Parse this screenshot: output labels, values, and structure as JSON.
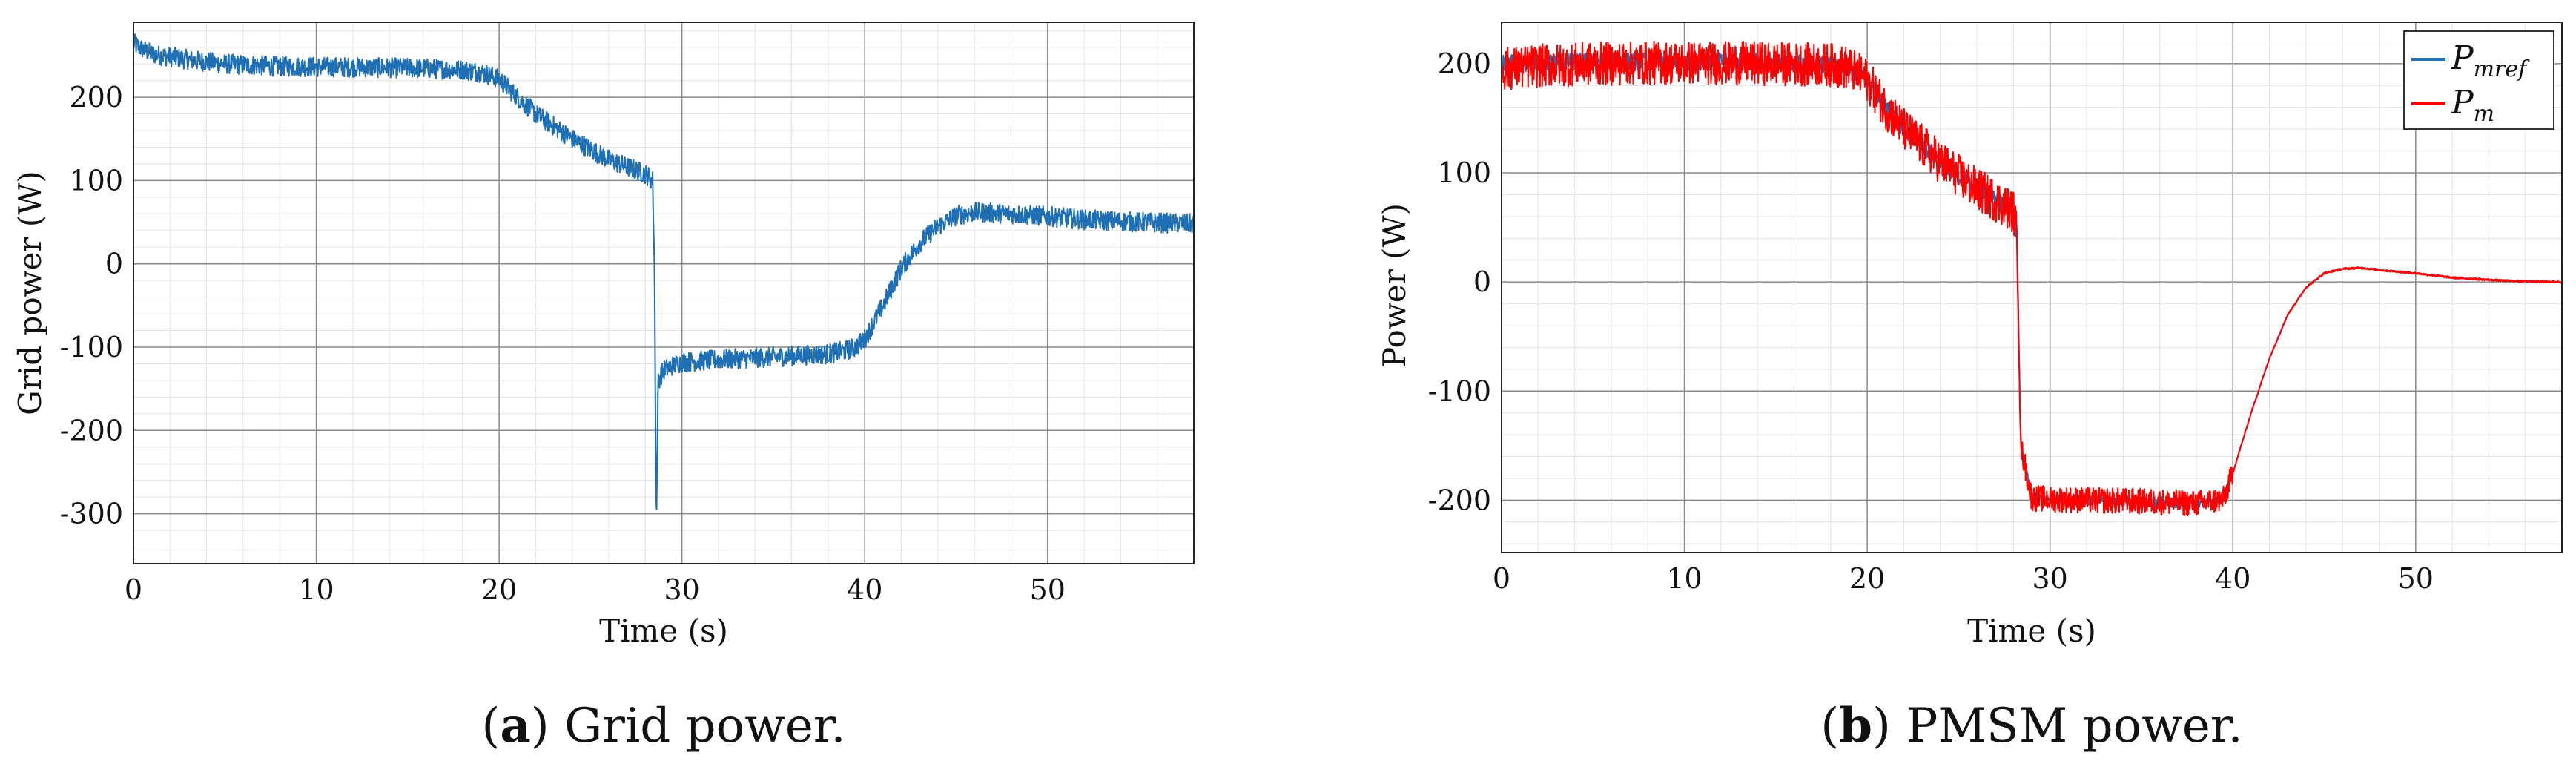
{
  "chart_data": [
    {
      "type": "line",
      "panel": "a",
      "caption_label": "a",
      "caption_text": "Grid power.",
      "xlabel": "Time (s)",
      "ylabel": "Grid power  (W)",
      "xlim": [
        0,
        58
      ],
      "ylim": [
        -360,
        290
      ],
      "x_ticks": [
        0,
        10,
        20,
        30,
        40,
        50
      ],
      "y_ticks": [
        200,
        100,
        0,
        -100,
        -200,
        -300
      ],
      "y_tick_labels": [
        "200",
        "100",
        "0",
        "-100",
        "-200",
        "-300"
      ],
      "grid": true,
      "color": "#1f6fb5",
      "series": [
        {
          "x": [
            0,
            0.3,
            1,
            3,
            5,
            8,
            12,
            15,
            18,
            19,
            20,
            21,
            22,
            24,
            26,
            28,
            28.4,
            28.5,
            28.6,
            28.7,
            29,
            29.5,
            30,
            32,
            35,
            38,
            39,
            39.5,
            40,
            41,
            42,
            43,
            44,
            45,
            46,
            48,
            50,
            52,
            55,
            58
          ],
          "y": [
            265,
            260,
            252,
            245,
            240,
            237,
            236,
            235,
            233,
            230,
            222,
            200,
            180,
            150,
            125,
            108,
            100,
            -10,
            -320,
            -140,
            -128,
            -122,
            -118,
            -115,
            -112,
            -108,
            -104,
            -100,
            -90,
            -50,
            -5,
            25,
            45,
            58,
            62,
            60,
            57,
            53,
            50,
            48
          ]
        }
      ],
      "noise": 12
    },
    {
      "type": "line",
      "panel": "b",
      "caption_label": "b",
      "caption_text": "PMSM power.",
      "xlabel": "Time (s)",
      "ylabel": "Power  (W)",
      "xlim": [
        0,
        58
      ],
      "ylim": [
        -248,
        238
      ],
      "x_ticks": [
        0,
        10,
        20,
        30,
        40,
        50
      ],
      "y_ticks": [
        200,
        100,
        0,
        -100,
        -200
      ],
      "y_tick_labels": [
        "200",
        "100",
        "0",
        "-100",
        "-200"
      ],
      "grid": true,
      "legend_position": "top-right",
      "series": [
        {
          "name": "P_mref",
          "legend_main": "P",
          "legend_sub": "mref",
          "color": "#1f6fb5",
          "x": [
            0,
            2,
            5,
            10,
            15,
            18,
            19,
            20,
            21,
            22,
            24,
            26,
            28,
            28.2,
            28.4,
            29,
            30,
            32,
            35,
            38,
            39.5,
            40,
            41,
            42,
            43,
            44,
            45,
            46,
            47,
            48,
            50,
            52,
            55,
            58
          ],
          "y": [
            200,
            201,
            202,
            202,
            201,
            199,
            196,
            185,
            160,
            140,
            110,
            85,
            65,
            40,
            -150,
            -198,
            -199,
            -200,
            -201,
            -203,
            -199,
            -175,
            -120,
            -70,
            -30,
            -5,
            8,
            12,
            13,
            11,
            8,
            4,
            1,
            0
          ]
        },
        {
          "name": "P_m",
          "legend_main": "P",
          "legend_sub": "m",
          "color": "#ff0000",
          "x": [
            0,
            2,
            5,
            10,
            15,
            18,
            19,
            20,
            21,
            22,
            24,
            26,
            28,
            28.2,
            28.4,
            29,
            30,
            32,
            35,
            38,
            39.5,
            40,
            41,
            42,
            43,
            44,
            45,
            46,
            47,
            48,
            50,
            52,
            55,
            58
          ],
          "y": [
            195,
            198,
            200,
            201,
            200,
            199,
            196,
            185,
            160,
            140,
            110,
            85,
            65,
            40,
            -150,
            -198,
            -199,
            -200,
            -201,
            -203,
            -199,
            -175,
            -120,
            -70,
            -30,
            -5,
            8,
            12,
            13,
            11,
            8,
            4,
            1,
            0
          ]
        }
      ],
      "noise_profile": [
        [
          0,
          28.3,
          20
        ],
        [
          28.3,
          40,
          12
        ],
        [
          40,
          58,
          1
        ]
      ]
    }
  ]
}
